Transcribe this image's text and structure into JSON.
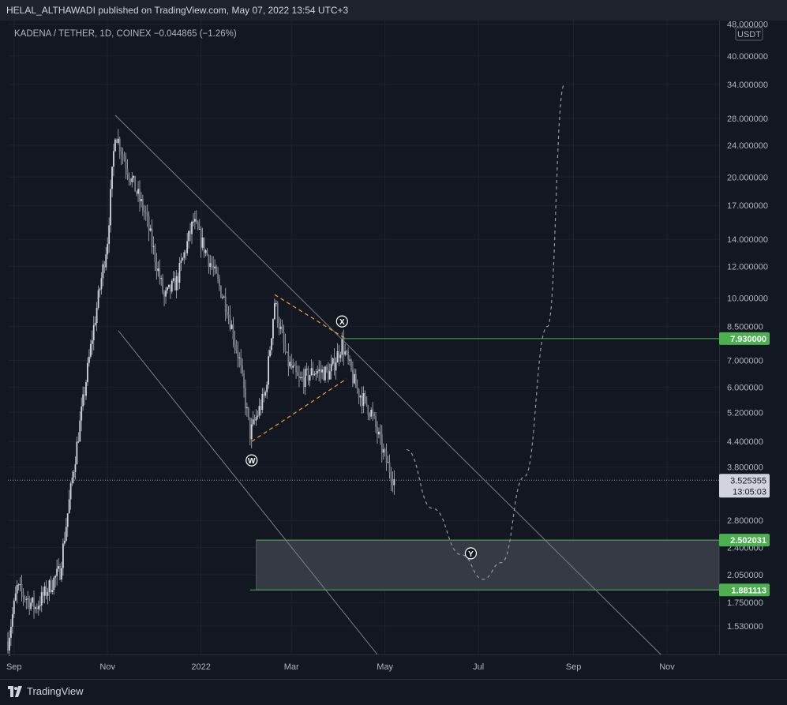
{
  "header": {
    "publisher": "HELAL_ALTHAWADI published on TradingView.com, May 07, 2022 13:54 UTC+3"
  },
  "symbol": {
    "title": "KADENA / TETHER, 1D, COINEX",
    "change": "−0.044865 (−1.26%)"
  },
  "currency": "USDT",
  "colors": {
    "background": "#131722",
    "grid": "#1e222d",
    "green": "#4caf50",
    "orange": "#f0a030",
    "price_line": "#787b86"
  },
  "chart_data": {
    "type": "candlestick",
    "y_scale": "log",
    "ylim": [
      1.3,
      49
    ],
    "y_ticks": [
      "48.000000",
      "40.000000",
      "34.000000",
      "28.000000",
      "24.000000",
      "20.000000",
      "17.000000",
      "14.000000",
      "12.000000",
      "10.000000",
      "8.500000",
      "7.000000",
      "6.000000",
      "5.200000",
      "4.400000",
      "3.800000",
      "2.800000",
      "2.400000",
      "2.050000",
      "1.750000",
      "1.530000"
    ],
    "x_ticks": [
      "Sep",
      "Nov",
      "2022",
      "Mar",
      "May",
      "Jul",
      "Sep",
      "Nov"
    ],
    "price_label": {
      "value": "3.525355",
      "countdown": "13:05:03"
    },
    "levels": [
      {
        "value": 7.93,
        "label": "7.930000"
      },
      {
        "value": 2.502031,
        "label": "2.502031"
      },
      {
        "value": 1.881113,
        "label": "1.881113"
      }
    ],
    "wave_labels": [
      "W",
      "X",
      "Y"
    ],
    "price_path_approx": [
      {
        "date": "2021-08-28",
        "price": 1.4
      },
      {
        "date": "2021-09-03",
        "price": 1.9
      },
      {
        "date": "2021-09-15",
        "price": 1.7
      },
      {
        "date": "2021-10-01",
        "price": 2.1
      },
      {
        "date": "2021-10-10",
        "price": 3.8
      },
      {
        "date": "2021-10-22",
        "price": 8.0
      },
      {
        "date": "2021-11-01",
        "price": 14.0
      },
      {
        "date": "2021-11-06",
        "price": 26.0
      },
      {
        "date": "2021-11-14",
        "price": 21.0
      },
      {
        "date": "2021-11-26",
        "price": 16.0
      },
      {
        "date": "2021-12-08",
        "price": 10.0
      },
      {
        "date": "2021-12-16",
        "price": 11.0
      },
      {
        "date": "2021-12-27",
        "price": 15.5
      },
      {
        "date": "2022-01-08",
        "price": 12.0
      },
      {
        "date": "2022-01-18",
        "price": 9.5
      },
      {
        "date": "2022-01-26",
        "price": 7.0
      },
      {
        "date": "2022-02-02",
        "price": 4.6
      },
      {
        "date": "2022-02-12",
        "price": 5.8
      },
      {
        "date": "2022-02-18",
        "price": 9.8
      },
      {
        "date": "2022-02-26",
        "price": 7.0
      },
      {
        "date": "2022-03-06",
        "price": 6.2
      },
      {
        "date": "2022-03-16",
        "price": 6.6
      },
      {
        "date": "2022-03-26",
        "price": 6.5
      },
      {
        "date": "2022-04-03",
        "price": 7.7
      },
      {
        "date": "2022-04-12",
        "price": 6.0
      },
      {
        "date": "2022-04-22",
        "price": 5.2
      },
      {
        "date": "2022-05-01",
        "price": 4.0
      },
      {
        "date": "2022-05-07",
        "price": 3.53
      }
    ],
    "projection": [
      {
        "date": "2022-05-15",
        "price": 4.2
      },
      {
        "date": "2022-06-01",
        "price": 3.0
      },
      {
        "date": "2022-06-20",
        "price": 2.3
      },
      {
        "date": "2022-07-04",
        "price": 2.0
      },
      {
        "date": "2022-07-16",
        "price": 2.2
      },
      {
        "date": "2022-07-31",
        "price": 3.6
      },
      {
        "date": "2022-08-15",
        "price": 8.5
      },
      {
        "date": "2022-08-26",
        "price": 34.0
      }
    ],
    "channel_lines": [
      {
        "from": {
          "date": "2021-11-06",
          "price": 28.5
        },
        "to": {
          "date": "2022-10-28",
          "price": 1.3
        }
      },
      {
        "from": {
          "date": "2021-11-08",
          "price": 8.3
        },
        "to": {
          "date": "2022-04-26",
          "price": 1.3
        }
      }
    ],
    "triangle_lines": [
      {
        "from": {
          "date": "2022-02-03",
          "price": 4.4
        },
        "to": {
          "date": "2022-04-06",
          "price": 6.3
        }
      },
      {
        "from": {
          "date": "2022-02-18",
          "price": 10.2
        },
        "to": {
          "date": "2022-04-06",
          "price": 7.9
        }
      }
    ]
  },
  "footer": {
    "brand": "TradingView"
  }
}
